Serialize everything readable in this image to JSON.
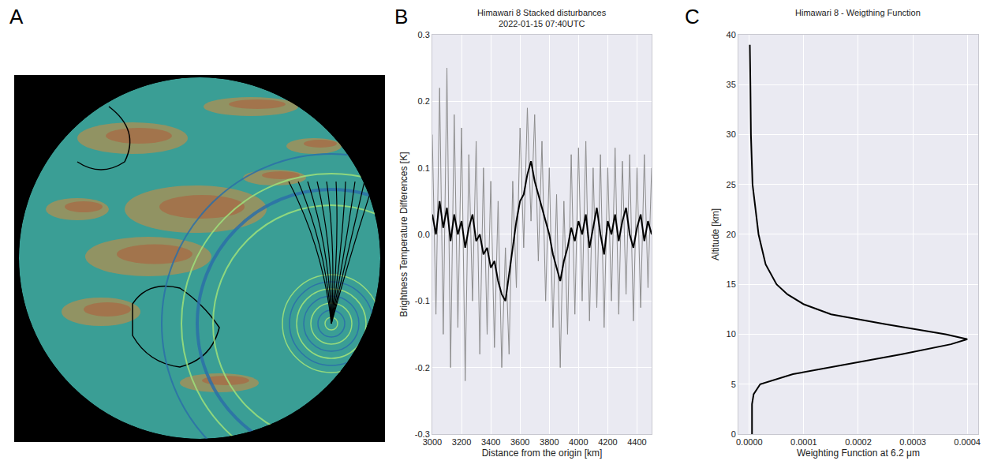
{
  "chart_data": [
    {
      "type": "map",
      "panel": "A"
    },
    {
      "type": "line",
      "panel": "B",
      "title": "Himawari 8 Stacked disturbances",
      "subtitle": "2022-01-15 07:40UTC",
      "x_label": "Distance from the origin [km]",
      "y_label": "Brightness Temperature Differences [K]",
      "x": [
        3000,
        3025,
        3050,
        3075,
        3100,
        3125,
        3150,
        3175,
        3200,
        3225,
        3250,
        3275,
        3300,
        3325,
        3350,
        3375,
        3400,
        3425,
        3450,
        3475,
        3500,
        3525,
        3550,
        3575,
        3600,
        3625,
        3650,
        3675,
        3700,
        3725,
        3750,
        3775,
        3800,
        3825,
        3850,
        3875,
        3900,
        3925,
        3950,
        3975,
        4000,
        4025,
        4050,
        4075,
        4100,
        4125,
        4150,
        4175,
        4200,
        4225,
        4250,
        4275,
        4300,
        4325,
        4350,
        4375,
        4400,
        4425,
        4450,
        4475,
        4500
      ],
      "series": [
        {
          "color": "#8c8c8c",
          "values": [
            0.15,
            -0.12,
            0.22,
            -0.15,
            0.25,
            -0.2,
            0.18,
            -0.14,
            0.16,
            -0.22,
            0.12,
            -0.1,
            0.14,
            -0.18,
            0.1,
            -0.15,
            0.08,
            -0.17,
            0.05,
            -0.2,
            -0.02,
            -0.18,
            0.08,
            -0.08,
            0.16,
            -0.02,
            0.19,
            0.02,
            0.18,
            -0.04,
            0.14,
            -0.1,
            0.1,
            -0.14,
            0.06,
            -0.2,
            0.05,
            -0.15,
            0.12,
            -0.12,
            0.13,
            -0.1,
            0.14,
            -0.13,
            0.1,
            -0.11,
            0.12,
            -0.14,
            0.1,
            -0.1,
            0.13,
            -0.12,
            0.11,
            -0.09,
            0.12,
            -0.13,
            0.1,
            -0.11,
            0.12,
            -0.08,
            0.1
          ]
        },
        {
          "color": "#000000",
          "values": [
            0.03,
            0.0,
            0.05,
            0.01,
            0.04,
            -0.01,
            0.03,
            0.0,
            0.02,
            -0.02,
            0.01,
            0.03,
            -0.01,
            0.0,
            -0.03,
            -0.02,
            -0.05,
            -0.04,
            -0.07,
            -0.09,
            -0.1,
            -0.06,
            -0.02,
            0.02,
            0.05,
            0.06,
            0.09,
            0.11,
            0.08,
            0.06,
            0.04,
            0.02,
            0.0,
            -0.03,
            -0.05,
            -0.07,
            -0.04,
            -0.02,
            0.01,
            -0.01,
            0.02,
            0.0,
            0.03,
            -0.02,
            0.01,
            0.04,
            0.0,
            -0.03,
            0.02,
            0.0,
            0.03,
            -0.01,
            0.02,
            0.04,
            0.0,
            -0.02,
            0.01,
            0.03,
            -0.01,
            0.02,
            0.0
          ]
        }
      ],
      "xlim": [
        3000,
        4500
      ],
      "xticks": [
        3000,
        3200,
        3400,
        3600,
        3800,
        4000,
        4200,
        4400
      ],
      "ylim": [
        -0.3,
        0.3
      ],
      "yticks": [
        -0.3,
        -0.2,
        -0.1,
        {
          "value": 0,
          "label": "0.0"
        },
        0.1,
        0.2,
        0.3
      ],
      "grid": true
    },
    {
      "type": "line",
      "panel": "C",
      "title": "Himawari 8 - Weigthing Function",
      "x_label": "Weighting Function at 6.2 μm",
      "y_label": "Altitude [km]",
      "series": [
        {
          "color": "#000000",
          "x": [
            5e-06,
            5e-06,
            8e-06,
            2e-05,
            8e-05,
            0.00018,
            0.00028,
            0.00037,
            0.0004,
            0.00036,
            0.00025,
            0.00015,
            0.0001,
            7e-05,
            5e-05,
            3e-05,
            1.7e-05,
            6e-06,
            3e-06,
            2e-06,
            1e-06
          ],
          "y": [
            0,
            3,
            4,
            5,
            6,
            7,
            8,
            9,
            9.5,
            10,
            11,
            12,
            13,
            14,
            15,
            17,
            20,
            25,
            30,
            35,
            39
          ]
        }
      ],
      "xlim": [
        -2e-05,
        0.00042
      ],
      "xticks": [
        {
          "value": 0,
          "label": "0.0000"
        },
        {
          "value": 0.0001,
          "label": "0.0001"
        },
        {
          "value": 0.0002,
          "label": "0.0002"
        },
        {
          "value": 0.0003,
          "label": "0.0003"
        },
        {
          "value": 0.0004,
          "label": "0.0004"
        }
      ],
      "ylim": [
        0,
        40
      ],
      "yticks": [
        0,
        5,
        10,
        15,
        20,
        25,
        30,
        35,
        40
      ],
      "grid": true
    }
  ]
}
